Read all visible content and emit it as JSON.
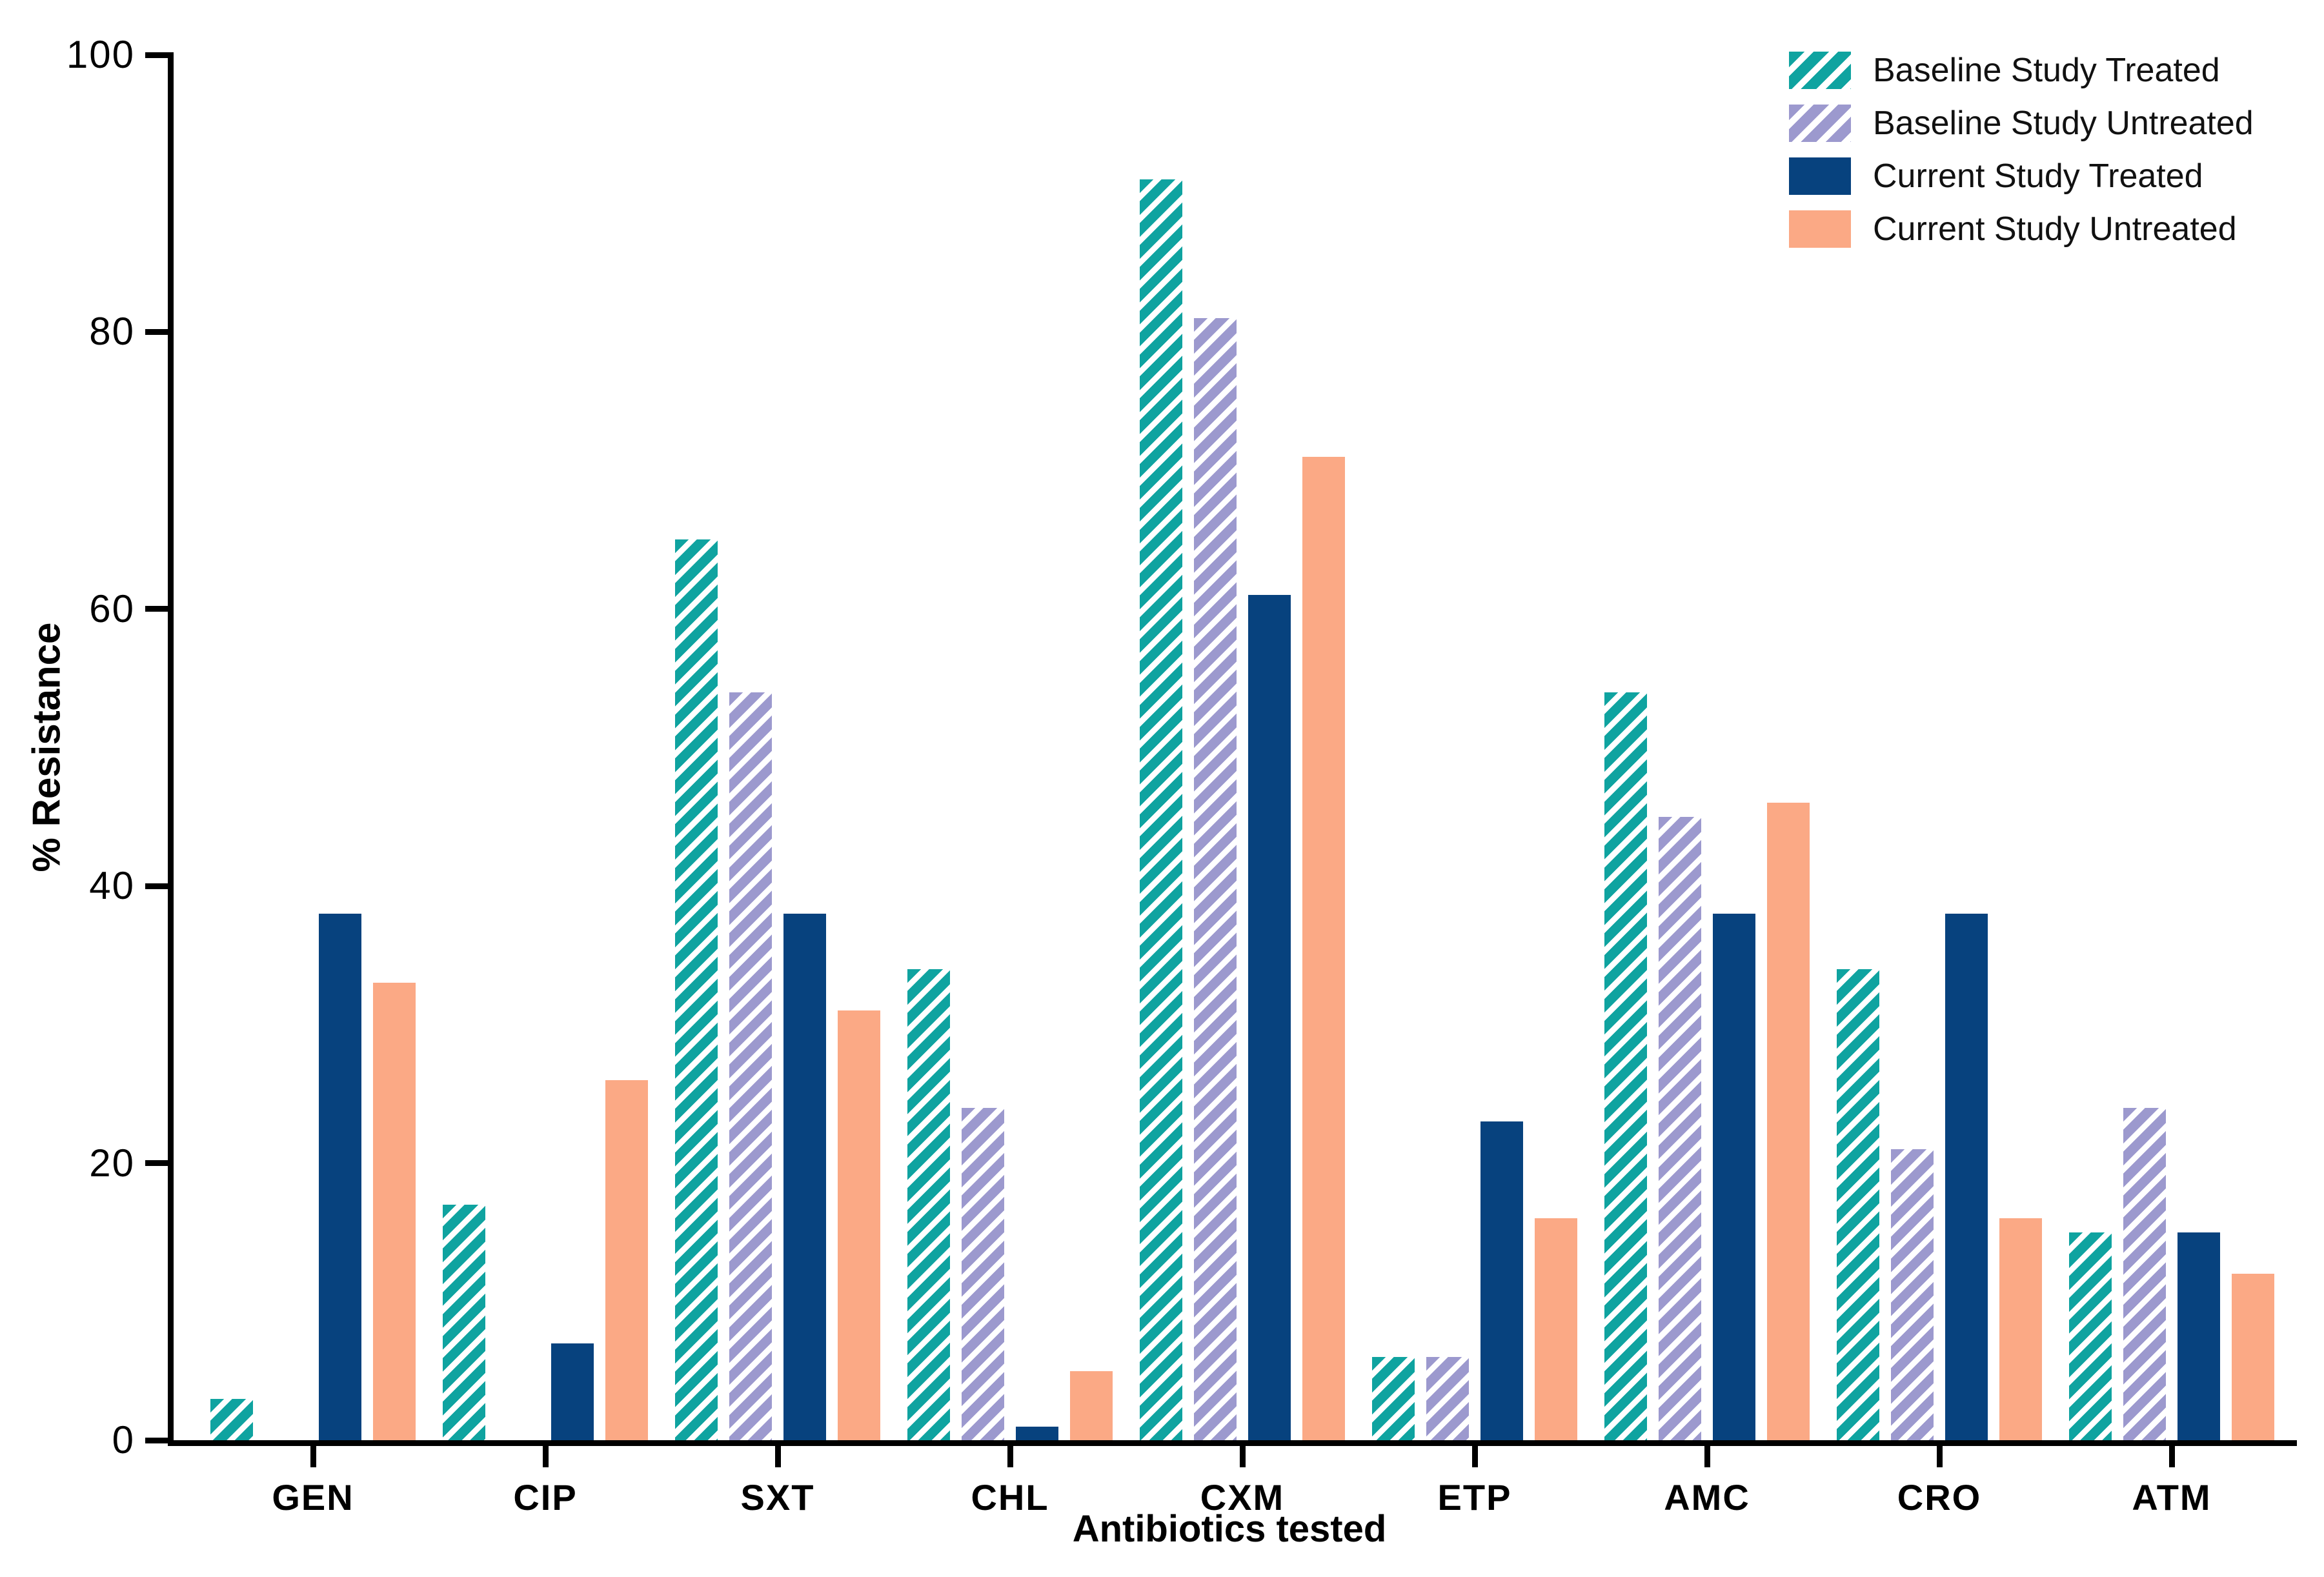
{
  "chart_data": {
    "type": "bar",
    "title": "",
    "xlabel": "Antibiotics tested",
    "ylabel": "% Resistance",
    "ylim": [
      0,
      100
    ],
    "yticks": [
      0,
      20,
      40,
      60,
      80,
      100
    ],
    "grid": false,
    "legend_position": "top-right",
    "categories": [
      "GEN",
      "CIP",
      "SXT",
      "CHL",
      "CXM",
      "ETP",
      "AMC",
      "CRO",
      "ATM"
    ],
    "series": [
      {
        "name": "Baseline Study Treated",
        "style": "hatched",
        "color": "#0FA3A0",
        "values": [
          3,
          17,
          65,
          34,
          91,
          6,
          54,
          34,
          15
        ]
      },
      {
        "name": "Baseline Study Untreated",
        "style": "hatched",
        "color": "#9C99CE",
        "values": [
          0,
          0,
          54,
          24,
          81,
          6,
          45,
          21,
          24
        ]
      },
      {
        "name": "Current Study Treated",
        "style": "solid",
        "color": "#07427E",
        "values": [
          38,
          7,
          38,
          1,
          61,
          23,
          38,
          38,
          15
        ]
      },
      {
        "name": "Current Study Untreated",
        "style": "solid",
        "color": "#FBA985",
        "values": [
          33,
          26,
          31,
          5,
          71,
          16,
          46,
          16,
          12
        ]
      }
    ]
  }
}
